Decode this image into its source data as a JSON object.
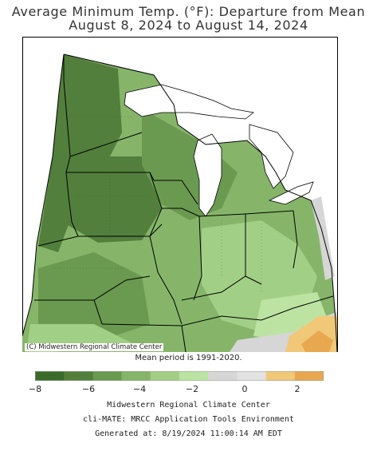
{
  "title": {
    "line1": "Average Minimum Temp. (°F): Departure from Mean",
    "line2": "August 8, 2024 to August 14, 2024"
  },
  "map": {
    "copyright": "(C) Midwestern Regional Climate Center",
    "mean_note": "Mean period is 1991-2020."
  },
  "legend": {
    "colors": [
      "#3a6b2a",
      "#527f3c",
      "#6a9a50",
      "#86b56a",
      "#a2cf86",
      "#bde3a2",
      "#d6d6d6",
      "#e2e2e2",
      "#f0c878",
      "#e8a850"
    ],
    "labels": [
      "−8",
      "−6",
      "−4",
      "−2",
      "0",
      "2"
    ]
  },
  "footer": {
    "line1": "Midwestern Regional Climate Center",
    "line2": "cli-MATE: MRCC Application Tools Environment",
    "line3": "Generated at: 8/19/2024 11:00:14 AM EDT"
  }
}
